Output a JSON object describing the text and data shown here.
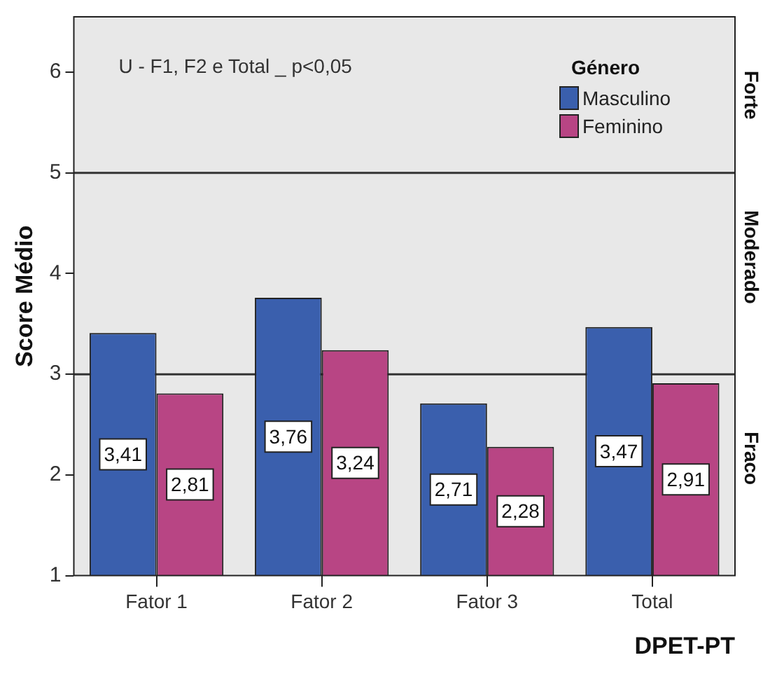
{
  "chart_data": {
    "type": "bar",
    "ylabel": "Score Médio",
    "xlabel": "DPET-PT",
    "legend_title": "Género",
    "legend": "top right",
    "grid": false,
    "categories": [
      "Fator 1",
      "Fator 2",
      "Fator 3",
      "Total"
    ],
    "series": [
      {
        "name": "Masculino",
        "color": "#3a5fad",
        "values": [
          3.41,
          3.76,
          2.71,
          3.47
        ],
        "value_labels": [
          "3,41",
          "3,76",
          "2,71",
          "3,47"
        ]
      },
      {
        "name": "Feminino",
        "color": "#b84584",
        "values": [
          2.81,
          3.24,
          2.28,
          2.91
        ],
        "value_labels": [
          "2,81",
          "3,24",
          "2,28",
          "2,91"
        ]
      }
    ],
    "ylim": [
      1,
      6.55
    ],
    "yticks": [
      1,
      2,
      3,
      4,
      5,
      6
    ],
    "ref_lines": [
      {
        "axis": "y",
        "value": 3
      },
      {
        "axis": "y",
        "value": 5
      }
    ],
    "annotations": [
      "U - F1, F2 e Total _ p<0,05",
      "Forte",
      "Moderado",
      "Fraco"
    ]
  }
}
